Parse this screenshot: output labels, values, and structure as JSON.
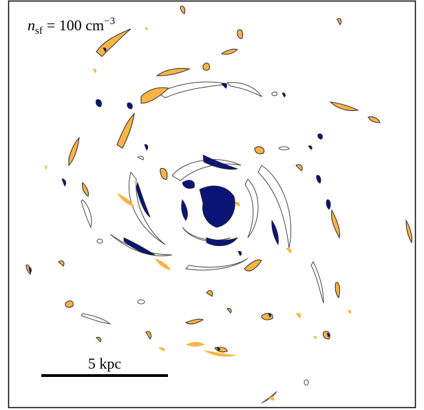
{
  "label": {
    "symbol": "n",
    "subscript": "sf",
    "equals": "= 100 cm",
    "superscript": "−3"
  },
  "scale_bar": "5 kpc"
}
